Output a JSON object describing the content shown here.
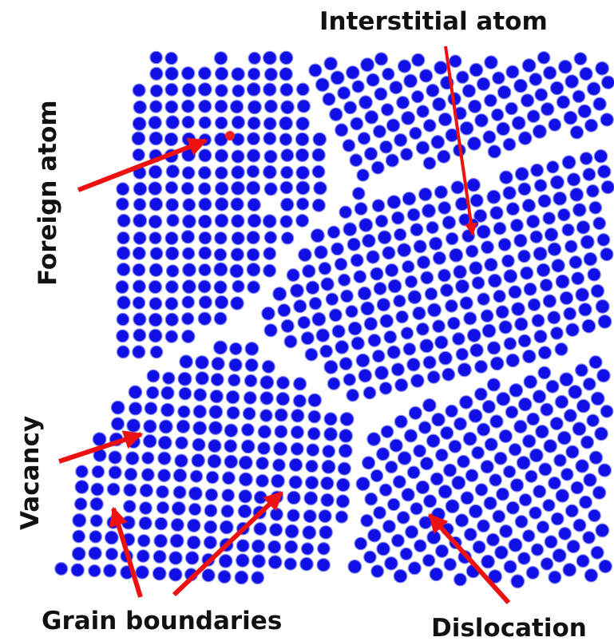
{
  "labels": {
    "interstitial": "Interstitial atom",
    "foreign": "Foreign atom",
    "vacancy": "Vacancy",
    "grain": "Grain boundaries",
    "dislocation": "Dislocation"
  },
  "colors": {
    "atom": "#1010e6",
    "atom_edge": "#7f86ee",
    "foreign_atom": "#ff1f1f",
    "arrow": "#ee1111",
    "text": "#111111",
    "background": "#ffffff"
  }
}
